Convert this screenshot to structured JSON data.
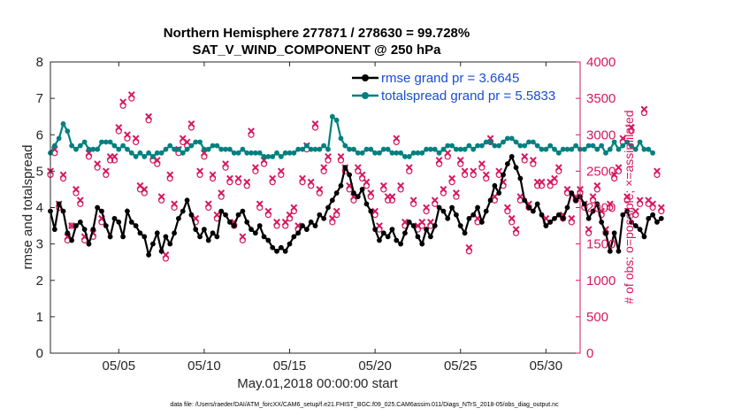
{
  "chart_data": {
    "type": "line",
    "title": "Northern Hemisphere 277871 / 278630 = 99.728%",
    "subtitle": "SAT_V_WIND_COMPONENT @ 250 hPa",
    "xlabel": "May.01,2018 00:00:00 start",
    "ylabel": "rmse and totalspread",
    "y2label": "# of obs: o=possible; ×=assimilated",
    "footnote": "data file: /Users/raeder/DAI/ATM_forcXX/CAM6_setup/f.e21.FHIST_BGC.f09_025.CAM6assim.011/Diags_NTrS_2018-05/obs_diag_output.nc",
    "xlim": [
      1,
      32
    ],
    "ylim": [
      0,
      8
    ],
    "y2lim": [
      0,
      4000
    ],
    "xticks": [
      5,
      10,
      15,
      20,
      25,
      30
    ],
    "xtick_labels": [
      "05/05",
      "05/10",
      "05/15",
      "05/20",
      "05/25",
      "05/30"
    ],
    "yticks": [
      0,
      1,
      2,
      3,
      4,
      5,
      6,
      7,
      8
    ],
    "ytick_labels": [
      "0",
      "1",
      "2",
      "3",
      "4",
      "5",
      "6",
      "7",
      "8"
    ],
    "y2ticks": [
      0,
      500,
      1000,
      1500,
      2000,
      2500,
      3000,
      3500,
      4000
    ],
    "y2tick_labels": [
      "0",
      "500",
      "1000",
      "1500",
      "2000",
      "2500",
      "3000",
      "3500",
      "4000"
    ],
    "colors": {
      "rmse": "#000000",
      "spread": "#008080",
      "obs": "#d6185f",
      "legend_text": "#1a4dd6"
    },
    "legend": [
      "rmse grand pr = 3.6645",
      "totalspread grand pr = 5.5833"
    ],
    "legend_position": "top-right",
    "series": [
      {
        "name": "rmse",
        "legend": "rmse grand pr = 3.6645",
        "x_start": 1.0,
        "x_step": 0.25,
        "values": [
          3.9,
          3.4,
          4.1,
          3.9,
          3.3,
          3.1,
          3.5,
          3.6,
          3.4,
          3.0,
          3.4,
          4.0,
          3.9,
          3.5,
          3.2,
          3.7,
          3.6,
          3.2,
          3.9,
          3.6,
          3.5,
          3.3,
          3.2,
          2.7,
          3.0,
          3.3,
          2.8,
          3.2,
          3.0,
          3.3,
          3.7,
          3.9,
          4.2,
          3.8,
          3.4,
          3.2,
          3.4,
          3.1,
          3.3,
          3.2,
          3.9,
          3.8,
          3.6,
          3.5,
          3.8,
          3.9,
          3.6,
          3.4,
          3.3,
          3.5,
          3.2,
          3.1,
          2.9,
          2.8,
          2.9,
          2.8,
          3.0,
          3.2,
          3.3,
          3.5,
          3.4,
          3.6,
          3.5,
          3.8,
          3.7,
          4.0,
          4.2,
          4.4,
          4.6,
          5.1,
          4.9,
          4.4,
          4.3,
          4.5,
          4.1,
          3.9,
          3.4,
          3.1,
          3.3,
          3.2,
          3.4,
          3.1,
          3.0,
          3.3,
          3.6,
          3.5,
          3.2,
          3.0,
          3.4,
          3.2,
          3.5,
          4.0,
          3.9,
          3.7,
          4.0,
          3.8,
          3.5,
          3.3,
          3.7,
          3.8,
          4.0,
          3.6,
          3.9,
          4.2,
          4.6,
          4.4,
          4.9,
          5.2,
          5.4,
          5.1,
          4.8,
          4.2,
          4.0,
          3.9,
          4.1,
          3.8,
          3.5,
          3.6,
          3.7,
          3.8,
          3.7,
          4.0,
          4.4,
          4.2,
          4.3,
          4.1,
          3.7,
          3.9,
          4.1,
          3.6,
          3.3,
          2.8,
          3.3,
          2.8,
          3.8,
          3.9,
          3.6,
          3.5,
          3.4,
          3.2,
          3.7,
          3.8,
          3.6,
          3.7
        ]
      },
      {
        "name": "totalspread",
        "legend": "totalspread grand pr = 5.5833",
        "x_start": 1.0,
        "x_step": 0.25,
        "values": [
          5.5,
          5.7,
          5.9,
          6.3,
          6.1,
          5.7,
          5.6,
          5.7,
          5.8,
          5.6,
          5.6,
          5.6,
          5.8,
          5.8,
          5.8,
          5.7,
          5.6,
          5.7,
          5.6,
          5.5,
          5.4,
          5.5,
          5.4,
          5.5,
          5.4,
          5.5,
          5.5,
          5.6,
          5.7,
          5.6,
          5.6,
          5.5,
          5.6,
          5.7,
          5.8,
          5.8,
          5.6,
          5.6,
          5.7,
          5.7,
          5.6,
          5.6,
          5.6,
          5.5,
          5.5,
          5.6,
          5.5,
          5.5,
          5.5,
          5.5,
          5.4,
          5.4,
          5.4,
          5.5,
          5.4,
          5.5,
          5.5,
          5.5,
          5.6,
          5.6,
          5.7,
          5.6,
          5.6,
          5.6,
          5.7,
          5.6,
          6.5,
          6.4,
          5.9,
          5.7,
          5.6,
          5.6,
          5.5,
          5.5,
          5.6,
          5.6,
          5.5,
          5.5,
          5.6,
          5.6,
          5.5,
          5.5,
          5.5,
          5.4,
          5.4,
          5.5,
          5.5,
          5.5,
          5.6,
          5.6,
          5.6,
          5.5,
          5.6,
          5.7,
          5.7,
          5.6,
          5.6,
          5.6,
          5.7,
          5.6,
          5.7,
          5.7,
          5.8,
          5.8,
          5.7,
          5.7,
          5.8,
          5.9,
          5.9,
          5.8,
          5.7,
          5.7,
          5.8,
          5.8,
          5.7,
          5.6,
          5.6,
          5.7,
          5.6,
          5.5,
          5.6,
          5.6,
          5.6,
          5.7,
          5.6,
          5.6,
          5.7,
          5.7,
          5.6,
          5.7,
          5.5,
          5.6,
          5.8,
          5.6,
          5.7,
          5.8,
          5.7,
          5.6,
          5.8,
          5.6,
          5.6,
          5.5
        ]
      },
      {
        "name": "obs_possible",
        "marker": "o",
        "x_start": 1.0,
        "x_step": 0.25,
        "values": [
          2450,
          2750,
          2000,
          2400,
          1550,
          1750,
          2200,
          2050,
          1550,
          2700,
          1600,
          2550,
          1800,
          2450,
          2650,
          2650,
          3050,
          3400,
          2950,
          3500,
          2900,
          2250,
          2200,
          3200,
          2650,
          2600,
          2100,
          1300,
          2400,
          2000,
          2750,
          2900,
          2850,
          3100,
          1800,
          2450,
          2700,
          2000,
          2400,
          1850,
          2150,
          2550,
          2350,
          1750,
          2350,
          1550,
          2300,
          3000,
          2500,
          2000,
          2600,
          1900,
          2350,
          1750,
          2450,
          1750,
          1850,
          1950,
          1700,
          2350,
          2800,
          2300,
          3100,
          2200,
          2500,
          2650,
          1800,
          1900,
          2650,
          2500,
          2250,
          2100,
          2500,
          2400,
          2300,
          2150,
          1900,
          1700,
          2250,
          2100,
          2100,
          2900,
          2250,
          1750,
          2500,
          2050,
          1700,
          1750,
          1950,
          1750,
          2050,
          2600,
          2200,
          2700,
          2350,
          2150,
          2600,
          2450,
          1400,
          2450,
          1800,
          2550,
          2400,
          2900,
          2100,
          2450,
          2300,
          1950,
          1800,
          1650,
          2100,
          2650,
          2000,
          2600,
          2300,
          2300,
          1800,
          2300,
          2350,
          2500,
          1850,
          2200,
          1800,
          2100,
          2200,
          2000,
          1650,
          2100,
          2250,
          1900,
          1650,
          2000,
          2400,
          2500,
          2900,
          2100,
          3050,
          1900,
          2050,
          3300,
          2050,
          2000,
          2450,
          1950
        ]
      },
      {
        "name": "obs_assimilated",
        "marker": "x",
        "x_start": 1.0,
        "x_step": 0.25,
        "values": [
          2500,
          2800,
          2050,
          2450,
          1600,
          1750,
          2250,
          2100,
          1600,
          2750,
          1650,
          2600,
          1850,
          2500,
          2700,
          2700,
          3100,
          3450,
          3000,
          3550,
          2950,
          2300,
          2250,
          3250,
          2700,
          2650,
          2150,
          1350,
          2450,
          2050,
          2800,
          2950,
          2900,
          3150,
          1850,
          2500,
          2750,
          2050,
          2450,
          1900,
          2200,
          2600,
          2400,
          1800,
          2400,
          1600,
          2350,
          3050,
          2550,
          2050,
          2650,
          1950,
          2400,
          1800,
          2500,
          1800,
          1900,
          2000,
          1750,
          2400,
          2850,
          2350,
          3150,
          2250,
          2550,
          2700,
          1850,
          1950,
          2700,
          2550,
          2300,
          2150,
          2550,
          2450,
          2350,
          2200,
          1950,
          1750,
          2300,
          2150,
          2150,
          2950,
          2300,
          1800,
          2550,
          2100,
          1750,
          1800,
          2000,
          1800,
          2100,
          2650,
          2250,
          2750,
          2400,
          2200,
          2650,
          2500,
          1450,
          2500,
          1850,
          2600,
          2450,
          2950,
          2150,
          2500,
          2350,
          2000,
          1850,
          1700,
          2150,
          2700,
          2050,
          2650,
          2350,
          2350,
          1850,
          2350,
          2400,
          2550,
          1900,
          2250,
          1850,
          2150,
          2250,
          2050,
          1700,
          2150,
          2300,
          1950,
          1700,
          2050,
          2450,
          2550,
          2950,
          2150,
          3100,
          1950,
          2100,
          3350,
          2100,
          2050,
          2500,
          2000
        ]
      }
    ]
  }
}
